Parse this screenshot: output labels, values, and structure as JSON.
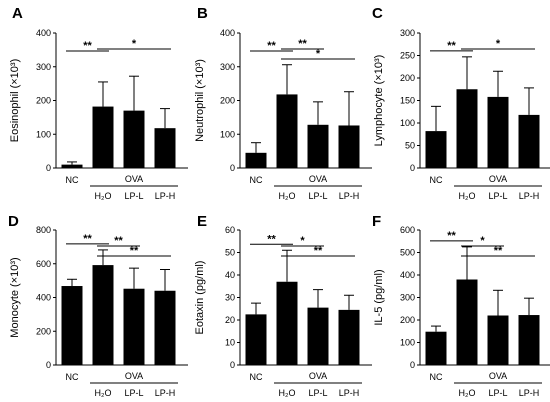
{
  "chart_data": [
    {
      "panel": "A",
      "type": "bar",
      "ylabel": "Eosinophil (×10³)",
      "ylim": [
        0,
        400
      ],
      "yticks": [
        "0",
        "100",
        "200",
        "300",
        "400"
      ],
      "categories": [
        "NC",
        "H₂O",
        "LP-L",
        "LP-H"
      ],
      "group_label": "OVA",
      "values": [
        10,
        182,
        170,
        118
      ],
      "errors": [
        8,
        73,
        102,
        58
      ],
      "significance": [
        {
          "from": 0,
          "to": 1,
          "label": "**"
        },
        {
          "from": 1,
          "to": 3,
          "label": "*"
        }
      ]
    },
    {
      "panel": "B",
      "type": "bar",
      "ylabel": "Neutrophil (×10³)",
      "ylim": [
        0,
        400
      ],
      "yticks": [
        "0",
        "100",
        "200",
        "300",
        "400"
      ],
      "categories": [
        "NC",
        "H₂O",
        "LP-L",
        "LP-H"
      ],
      "group_label": "OVA",
      "values": [
        45,
        218,
        128,
        126
      ],
      "errors": [
        30,
        88,
        68,
        100
      ],
      "significance": [
        {
          "from": 0,
          "to": 1,
          "label": "**"
        },
        {
          "from": 1,
          "to": 2,
          "label": "**"
        },
        {
          "from": 1,
          "to": 3,
          "label": "*"
        }
      ]
    },
    {
      "panel": "C",
      "type": "bar",
      "ylabel": "Lymphocyte (×10³)",
      "ylim": [
        0,
        300
      ],
      "yticks": [
        "0",
        "50",
        "100",
        "150",
        "200",
        "250",
        "300"
      ],
      "categories": [
        "NC",
        "H₂O",
        "LP-L",
        "LP-H"
      ],
      "group_label": "OVA",
      "values": [
        82,
        175,
        158,
        118
      ],
      "errors": [
        55,
        72,
        57,
        60
      ],
      "significance": [
        {
          "from": 0,
          "to": 1,
          "label": "**"
        },
        {
          "from": 1,
          "to": 3,
          "label": "*"
        }
      ]
    },
    {
      "panel": "D",
      "type": "bar",
      "ylabel": "Monocyte (×10³)",
      "ylim": [
        0,
        800
      ],
      "yticks": [
        "0",
        "200",
        "400",
        "600",
        "800"
      ],
      "categories": [
        "NC",
        "H₂O",
        "LP-L",
        "LP-H"
      ],
      "group_label": "OVA",
      "values": [
        468,
        592,
        452,
        440
      ],
      "errors": [
        40,
        90,
        122,
        126
      ],
      "significance": [
        {
          "from": 0,
          "to": 1,
          "label": "**"
        },
        {
          "from": 1,
          "to": 2,
          "label": "**"
        },
        {
          "from": 1,
          "to": 3,
          "label": "**"
        }
      ]
    },
    {
      "panel": "E",
      "type": "bar",
      "ylabel": "Eotaxin (pg/ml)",
      "ylim": [
        0,
        60
      ],
      "yticks": [
        "0",
        "10",
        "20",
        "30",
        "40",
        "50",
        "60"
      ],
      "categories": [
        "NC",
        "H₂O",
        "LP-L",
        "LP-H"
      ],
      "group_label": "OVA",
      "values": [
        22.5,
        37,
        25.5,
        24.5
      ],
      "errors": [
        5,
        14,
        8,
        6.5
      ],
      "significance": [
        {
          "from": 0,
          "to": 1,
          "label": "**"
        },
        {
          "from": 1,
          "to": 2,
          "label": "*"
        },
        {
          "from": 1,
          "to": 3,
          "label": "**"
        }
      ]
    },
    {
      "panel": "F",
      "type": "bar",
      "ylabel": "IL-5 (pg/ml)",
      "ylim": [
        0,
        600
      ],
      "yticks": [
        "0",
        "100",
        "200",
        "300",
        "400",
        "500",
        "600"
      ],
      "categories": [
        "NC",
        "H₂O",
        "LP-L",
        "LP-H"
      ],
      "group_label": "OVA",
      "values": [
        148,
        380,
        220,
        222
      ],
      "errors": [
        25,
        145,
        112,
        75
      ],
      "significance": [
        {
          "from": 0,
          "to": 1,
          "label": "**"
        },
        {
          "from": 1,
          "to": 2,
          "label": "*"
        },
        {
          "from": 1,
          "to": 3,
          "label": "**"
        }
      ]
    }
  ]
}
